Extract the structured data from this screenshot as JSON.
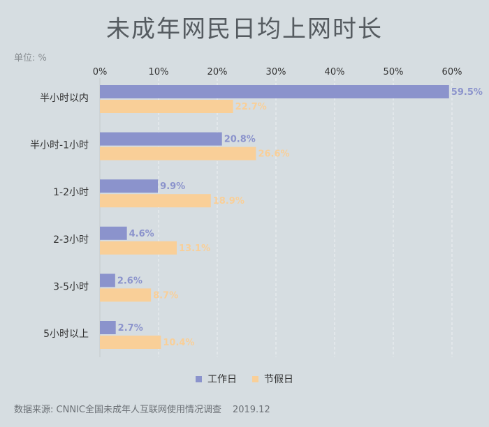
{
  "title": "未成年网民日均上网时长",
  "unit_label": "单位: %",
  "source": "数据来源: CNNIC全国未成年人互联网使用情况调查",
  "source_date": "2019.12",
  "colors": {
    "workday": "#8b93cc",
    "holiday": "#f9cf98",
    "workday_label": "#8b93cc",
    "holiday_label": "#f9cf98"
  },
  "chart_data": {
    "type": "bar",
    "orientation": "horizontal",
    "title": "未成年网民日均上网时长",
    "xlim": [
      0,
      60
    ],
    "x_ticks": [
      "0%",
      "10%",
      "20%",
      "30%",
      "40%",
      "50%",
      "60%"
    ],
    "categories": [
      "半小时以内",
      "半小时-1小时",
      "1-2小时",
      "2-3小时",
      "3-5小时",
      "5小时以上"
    ],
    "series": [
      {
        "name": "工作日",
        "values": [
          59.5,
          20.8,
          9.9,
          4.6,
          2.6,
          2.7
        ],
        "labels": [
          "59.5%",
          "20.8%",
          "9.9%",
          "4.6%",
          "2.6%",
          "2.7%"
        ]
      },
      {
        "name": "节假日",
        "values": [
          22.7,
          26.6,
          18.9,
          13.1,
          8.7,
          10.4
        ],
        "labels": [
          "22.7%",
          "26.6%",
          "18.9%",
          "13.1%",
          "8.7%",
          "10.4%"
        ]
      }
    ],
    "grid": true,
    "legend_position": "bottom"
  }
}
